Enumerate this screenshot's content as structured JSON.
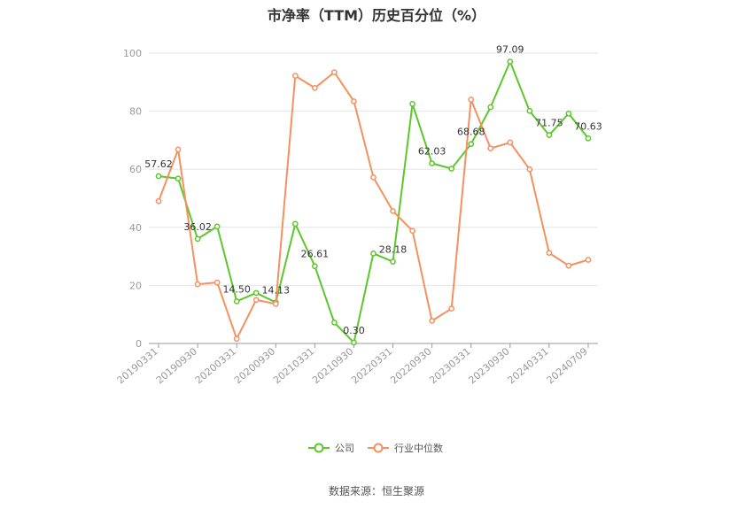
{
  "chart_data": {
    "type": "line",
    "title": "市净率（TTM）历史百分位（%）",
    "source": "数据来源：恒生聚源",
    "ylim": [
      0,
      100
    ],
    "yticks": [
      0,
      20,
      40,
      60,
      80,
      100
    ],
    "grid": true,
    "legend_position": "bottom",
    "x": [
      "20190331",
      "20190630",
      "20190930",
      "20191231",
      "20200331",
      "20200630",
      "20200930",
      "20201231",
      "20210331",
      "20210630",
      "20210930",
      "20211231",
      "20220331",
      "20220630",
      "20220930",
      "20221231",
      "20230331",
      "20230630",
      "20230930",
      "20231231",
      "20240331",
      "20240630",
      "20240709"
    ],
    "xticks": [
      "20190331",
      "20190930",
      "20200331",
      "20200930",
      "20210331",
      "20210930",
      "20220331",
      "20220930",
      "20230331",
      "20230930",
      "20240331",
      "20240709"
    ],
    "series": [
      {
        "name": "公司",
        "color": "#5cc72a",
        "values": [
          57.62,
          56.8,
          36.02,
          40.3,
          14.5,
          17.4,
          14.13,
          41.2,
          26.61,
          7.2,
          0.3,
          31.0,
          28.18,
          82.5,
          62.03,
          60.2,
          68.68,
          81.4,
          97.09,
          80.1,
          71.75,
          79.2,
          70.63
        ]
      },
      {
        "name": "行业中位数",
        "color": "#f5905f",
        "values": [
          49.0,
          66.8,
          20.4,
          21.0,
          1.6,
          15.0,
          13.6,
          92.2,
          88.0,
          93.4,
          83.4,
          57.2,
          45.6,
          38.8,
          7.8,
          12.0,
          84.0,
          67.2,
          69.2,
          60.0,
          31.2,
          26.8,
          28.8
        ]
      }
    ],
    "labeled_points": [
      {
        "index": 0,
        "text": "57.62"
      },
      {
        "index": 2,
        "text": "36.02"
      },
      {
        "index": 4,
        "text": "14.50"
      },
      {
        "index": 6,
        "text": "14.13"
      },
      {
        "index": 8,
        "text": "26.61"
      },
      {
        "index": 10,
        "text": "0.30"
      },
      {
        "index": 12,
        "text": "28.18"
      },
      {
        "index": 14,
        "text": "62.03"
      },
      {
        "index": 16,
        "text": "68.68"
      },
      {
        "index": 18,
        "text": "97.09"
      },
      {
        "index": 20,
        "text": "71.75"
      },
      {
        "index": 22,
        "text": "70.63"
      }
    ]
  }
}
